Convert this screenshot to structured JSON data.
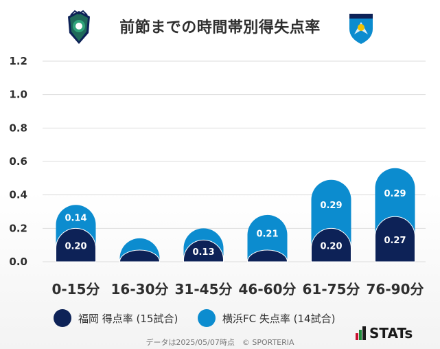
{
  "title": "前節までの時間帯別得失点率",
  "icons": {
    "left_crest": "avispa-fukuoka-crest-icon",
    "right_crest": "yokohama-fc-crest-icon",
    "logo": "stats-logo-icon"
  },
  "colors": {
    "fukuoka": "#0d2257",
    "yokohama": "#0c8ccf",
    "grid": "#dddddd",
    "label_text": "#2e2e2e",
    "stats_red": "#c8102e",
    "stats_green": "#1f8a3a"
  },
  "chart_data": {
    "type": "bar",
    "stacked": true,
    "categories": [
      "0-15分",
      "16-30分",
      "31-45分",
      "46-60分",
      "61-75分",
      "76-90分"
    ],
    "series": [
      {
        "name": "福岡 得点率 (15試合)",
        "values": [
          0.2,
          0.07,
          0.13,
          0.07,
          0.2,
          0.27
        ],
        "labels": [
          "0.20",
          "",
          "0.13",
          "",
          "0.20",
          "0.27"
        ]
      },
      {
        "name": "横浜FC 失点率 (14試合)",
        "values": [
          0.14,
          0.07,
          0.07,
          0.21,
          0.29,
          0.29
        ],
        "labels": [
          "0.14",
          "",
          "",
          "0.21",
          "0.29",
          "0.29"
        ]
      }
    ],
    "yticks": [
      "0.0",
      "0.2",
      "0.4",
      "0.6",
      "0.8",
      "1.0",
      "1.2"
    ],
    "ylim": [
      0,
      1.2
    ],
    "grid": true,
    "legend": "bottom"
  },
  "legend": [
    {
      "label": "福岡 得点率 (15試合)"
    },
    {
      "label": "横浜FC 失点率 (14試合)"
    }
  ],
  "footer": "データは2025/05/07時点　© SPORTERIA",
  "logo_text": "STATs"
}
